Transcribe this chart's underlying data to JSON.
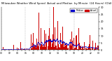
{
  "title_left": "Milwaukee Weather Wind Speed  Actual and Median  by Minute  (24 Hours) (Old)",
  "bg_color": "#ffffff",
  "bar_color": "#cc0000",
  "median_color": "#0000cc",
  "legend_actual_label": "Actual",
  "legend_median_label": "Median",
  "n_points": 1440,
  "y_max": 30,
  "y_ticks": [
    0,
    5,
    10,
    15,
    20,
    25,
    30
  ],
  "title_fontsize": 2.8,
  "tick_fontsize": 2.5,
  "legend_fontsize": 2.2,
  "dpi": 100,
  "figw": 1.6,
  "figh": 0.87
}
